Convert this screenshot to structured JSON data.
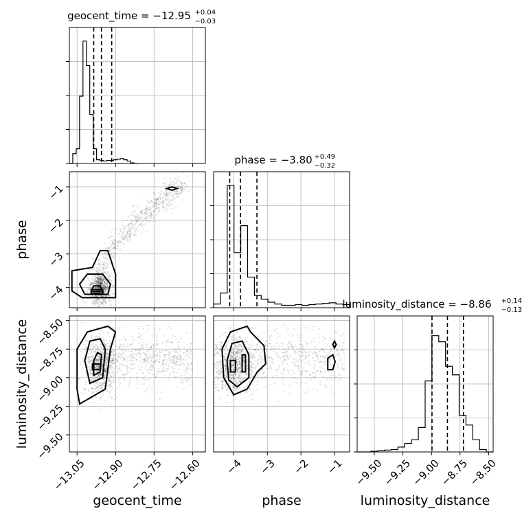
{
  "chart_data": {
    "type": "corner",
    "parameters": [
      {
        "name": "geocent_time",
        "median": -12.95,
        "plus": 0.04,
        "minus": 0.03,
        "title_text": "geocent_time = −12.95",
        "plus_text": "+0.04",
        "minus_text": "−0.03",
        "range": [
          -13.08,
          -12.55
        ],
        "ticks": [
          -13.05,
          -12.9,
          -12.75,
          -12.6
        ],
        "tick_labels": [
          "−13.05",
          "−12.90",
          "−12.75",
          "−12.60"
        ],
        "quantiles": [
          -12.985,
          -12.955,
          -12.915
        ],
        "hist_edges_start": -13.08,
        "hist_bin_width": 0.01325,
        "hist": [
          0.0,
          0.08,
          0.12,
          0.55,
          1.0,
          0.8,
          0.4,
          0.12,
          0.03,
          0.025,
          0.02,
          0.025,
          0.025,
          0.03,
          0.035,
          0.04,
          0.03,
          0.02,
          0.005,
          0.0
        ]
      },
      {
        "name": "phase",
        "median": -3.8,
        "plus": 0.49,
        "minus": 0.32,
        "title_text": "phase = −3.80",
        "plus_text": "+0.49",
        "minus_text": "−0.32",
        "range": [
          -4.6,
          -0.55
        ],
        "ticks": [
          -4,
          -3,
          -2,
          -1
        ],
        "tick_labels": [
          "−4",
          "−3",
          "−2",
          "−1"
        ],
        "quantiles": [
          -4.12,
          -3.8,
          -3.31
        ],
        "hist_edges_start": -4.6,
        "hist_bin_width": 0.2025,
        "hist": [
          0.03,
          0.12,
          1.0,
          0.45,
          0.67,
          0.25,
          0.1,
          0.07,
          0.045,
          0.03,
          0.02,
          0.02,
          0.025,
          0.02,
          0.025,
          0.03,
          0.035,
          0.04,
          0.03,
          0.025
        ]
      },
      {
        "name": "luminosity_distance",
        "median": -8.86,
        "plus": 0.14,
        "minus": 0.13,
        "title_text": "luminosity_distance = −8.86",
        "plus_text": "+0.14",
        "minus_text": "−0.13",
        "range": [
          -9.65,
          -8.46
        ],
        "ticks": [
          -9.5,
          -9.25,
          -9.0,
          -8.75,
          -8.5
        ],
        "tick_labels": [
          "−9.50",
          "−9.25",
          "−9.00",
          "−8.75",
          "−8.50"
        ],
        "quantiles": [
          -8.995,
          -8.86,
          -8.72
        ],
        "hist_edges_start": -9.65,
        "hist_bin_width": 0.0595,
        "hist": [
          0.0,
          0.0,
          0.005,
          0.01,
          0.015,
          0.02,
          0.04,
          0.07,
          0.1,
          0.2,
          0.58,
          0.95,
          0.9,
          0.7,
          0.63,
          0.3,
          0.22,
          0.1,
          0.02,
          0.0
        ]
      }
    ],
    "axis_labels": [
      "geocent_time",
      "phase",
      "luminosity_distance"
    ],
    "y_labels": [
      "phase",
      "luminosity_distance"
    ],
    "grid": true
  }
}
